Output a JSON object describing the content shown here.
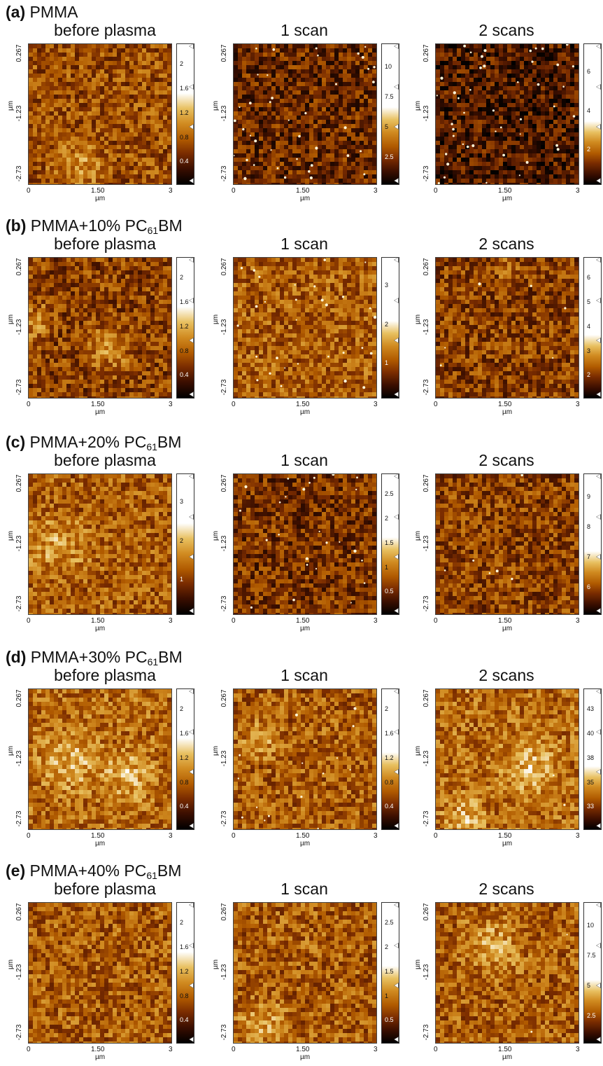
{
  "figure": {
    "rows": [
      {
        "label_letter": "(a)",
        "label_text": "PMMA",
        "label_sub": "",
        "label_tail": "",
        "panels": [
          {
            "title": "before plasma",
            "cbar_ticks": [
              "2",
              "1.6",
              "1.2",
              "0.8",
              "0.4"
            ],
            "seed": 11,
            "dots": 0,
            "bright": [
              [
                0.35,
                0.85,
                0.25
              ]
            ],
            "tone": 0.45
          },
          {
            "title": "1 scan",
            "cbar_ticks": [
              "10",
              "7.5",
              "5",
              "2.5"
            ],
            "seed": 23,
            "dots": 40,
            "bright": [],
            "tone": 0.3
          },
          {
            "title": "2 scans",
            "cbar_ticks": [
              "6",
              "4",
              "2"
            ],
            "seed": 37,
            "dots": 45,
            "bright": [],
            "tone": 0.22
          }
        ]
      },
      {
        "label_letter": "(b)",
        "label_text": "PMMA+10% PC",
        "label_sub": "61",
        "label_tail": "BM",
        "panels": [
          {
            "title": "before plasma",
            "cbar_ticks": [
              "2",
              "1.6",
              "1.2",
              "0.8",
              "0.4"
            ],
            "seed": 41,
            "dots": 0,
            "bright": [
              [
                0.05,
                0.45,
                0.2
              ],
              [
                0.55,
                0.65,
                0.25
              ]
            ],
            "tone": 0.4
          },
          {
            "title": "1 scan",
            "cbar_ticks": [
              "3",
              "2",
              "1"
            ],
            "seed": 53,
            "dots": 30,
            "bright": [],
            "tone": 0.5
          },
          {
            "title": "2 scans",
            "cbar_ticks": [
              "6",
              "5",
              "4",
              "3",
              "2"
            ],
            "seed": 67,
            "dots": 6,
            "bright": [
              [
                0.5,
                0.08,
                0.1
              ]
            ],
            "tone": 0.4
          }
        ]
      },
      {
        "label_letter": "(c)",
        "label_text": "PMMA+20% PC",
        "label_sub": "61",
        "label_tail": "BM",
        "panels": [
          {
            "title": "before plasma",
            "cbar_ticks": [
              "3",
              "2",
              "1"
            ],
            "seed": 71,
            "dots": 0,
            "bright": [
              [
                0.2,
                0.5,
                0.3
              ]
            ],
            "tone": 0.5
          },
          {
            "title": "1 scan",
            "cbar_ticks": [
              "2.5",
              "2",
              "1.5",
              "1",
              "0.5"
            ],
            "seed": 83,
            "dots": 25,
            "bright": [],
            "tone": 0.35
          },
          {
            "title": "2 scans",
            "cbar_ticks": [
              "9",
              "8",
              "7",
              "6"
            ],
            "seed": 97,
            "dots": 6,
            "bright": [],
            "tone": 0.4
          }
        ]
      },
      {
        "label_letter": "(d)",
        "label_text": "PMMA+30% PC",
        "label_sub": "61",
        "label_tail": "BM",
        "panels": [
          {
            "title": "before plasma",
            "cbar_ticks": [
              "2",
              "1.6",
              "1.2",
              "0.8",
              "0.4"
            ],
            "seed": 101,
            "dots": 0,
            "bright": [
              [
                0.3,
                0.5,
                0.3
              ],
              [
                0.7,
                0.6,
                0.25
              ]
            ],
            "tone": 0.55
          },
          {
            "title": "1 scan",
            "cbar_ticks": [
              "2",
              "1.6",
              "1.2",
              "0.8",
              "0.4"
            ],
            "seed": 113,
            "dots": 15,
            "bright": [
              [
                0.2,
                0.35,
                0.2
              ]
            ],
            "tone": 0.5
          },
          {
            "title": "2 scans",
            "cbar_ticks": [
              "43",
              "40",
              "38",
              "35",
              "33"
            ],
            "seed": 127,
            "dots": 3,
            "bright": [
              [
                0.65,
                0.55,
                0.3
              ],
              [
                0.2,
                0.9,
                0.2
              ]
            ],
            "tone": 0.55
          }
        ]
      },
      {
        "label_letter": "(e)",
        "label_text": "PMMA+40% PC",
        "label_sub": "61",
        "label_tail": "BM",
        "panels": [
          {
            "title": "before plasma",
            "cbar_ticks": [
              "2",
              "1.6",
              "1.2",
              "0.8",
              "0.4"
            ],
            "seed": 131,
            "dots": 0,
            "bright": [],
            "tone": 0.5
          },
          {
            "title": "1 scan",
            "cbar_ticks": [
              "2.5",
              "2",
              "1.5",
              "1",
              "0.5"
            ],
            "seed": 139,
            "dots": 0,
            "bright": [
              [
                0.2,
                0.85,
                0.25
              ]
            ],
            "tone": 0.5
          },
          {
            "title": "2 scans",
            "cbar_ticks": [
              "10",
              "7.5",
              "5",
              "2.5"
            ],
            "seed": 149,
            "dots": 2,
            "bright": [
              [
                0.4,
                0.3,
                0.3
              ]
            ],
            "tone": 0.5
          }
        ]
      }
    ],
    "y_ticks": [
      "0.267",
      "-1.23",
      "-2.73"
    ],
    "y_unit": "µm",
    "x_ticks": [
      "0",
      "1.50",
      "3"
    ],
    "x_unit": "µm",
    "colormap": [
      "#000000",
      "#3a0e00",
      "#7a2c00",
      "#b05a00",
      "#d08a20",
      "#e8c060",
      "#ffffff"
    ]
  }
}
